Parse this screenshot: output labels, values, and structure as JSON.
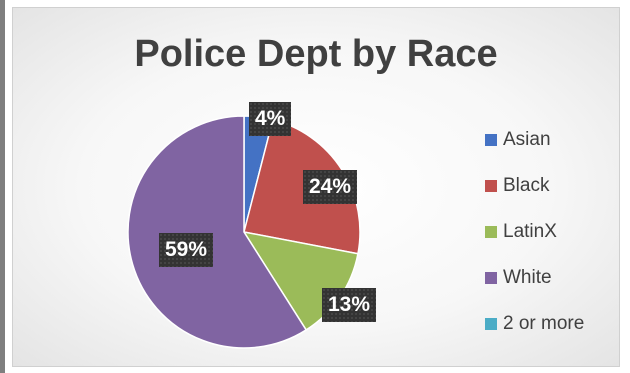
{
  "chart_data": {
    "type": "pie",
    "title": "Police Dept by Race",
    "categories": [
      "Asian",
      "Black",
      "LatinX",
      "White",
      "2 or more"
    ],
    "values": [
      4,
      24,
      13,
      59,
      0
    ],
    "labels": [
      "4%",
      "24%",
      "13%",
      "59%",
      ""
    ],
    "colors": [
      "#4472c4",
      "#c0504d",
      "#9bbb59",
      "#8064a2",
      "#4bacc6"
    ],
    "legend": "right"
  }
}
